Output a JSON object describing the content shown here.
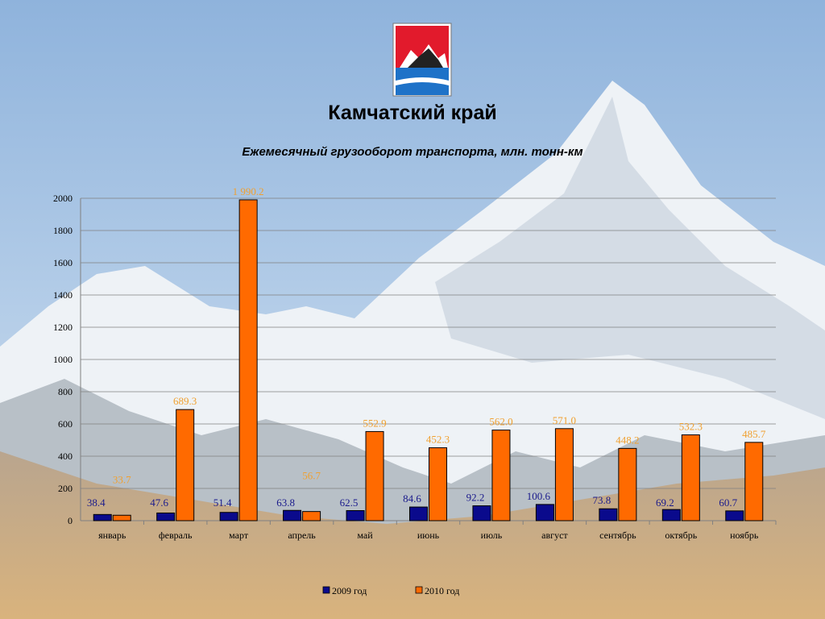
{
  "slide": {
    "title": "Камчатский край",
    "subtitle": "Ежемесячный грузооборот транспорта, млн. тонн-км"
  },
  "colors": {
    "series_2009": "#0a0a8c",
    "series_2010": "#ff6a00",
    "label_2009": "#1a1a8c",
    "label_2010": "#f0a030",
    "grid": "#808080"
  },
  "chart_data": {
    "type": "bar",
    "title": "Ежемесячный грузооборот транспорта, млн. тонн-км",
    "categories": [
      "январь",
      "февраль",
      "март",
      "апрель",
      "май",
      "июнь",
      "июль",
      "август",
      "сентябрь",
      "октябрь",
      "ноябрь"
    ],
    "series": [
      {
        "name": "2009 год",
        "values": [
          38.4,
          47.6,
          51.4,
          63.8,
          62.5,
          84.6,
          92.2,
          100.6,
          73.8,
          69.2,
          60.7
        ],
        "labels": [
          "38.4",
          "47.6",
          "51.4",
          "63.8",
          "62.5",
          "84.6",
          "92.2",
          "100.6",
          "73.8",
          "69.2",
          "60.7"
        ]
      },
      {
        "name": "2010 год",
        "values": [
          33.7,
          689.3,
          1990.2,
          56.7,
          552.9,
          452.3,
          562.0,
          571.0,
          448.2,
          532.3,
          485.7
        ],
        "labels": [
          "33.7",
          "689.3",
          "1 990.2",
          "56.7",
          "552.9",
          "452.3",
          "562.0",
          "571.0",
          "448.2",
          "532.3",
          "485.7"
        ]
      }
    ],
    "yticks": [
      "0",
      "200",
      "400",
      "600",
      "800",
      "1000",
      "1200",
      "1400",
      "1600",
      "1800",
      "2000"
    ],
    "ylim": [
      0,
      2000
    ],
    "grid": true,
    "legend": "bottom"
  }
}
